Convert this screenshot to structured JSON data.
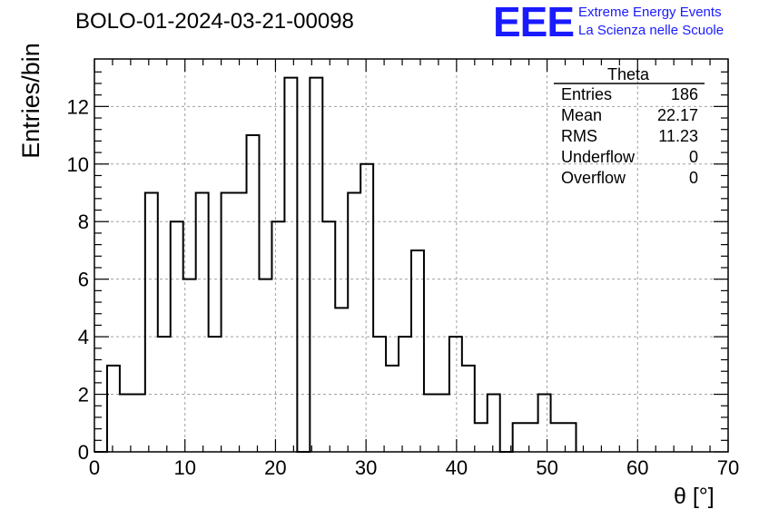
{
  "header": {
    "title": "BOLO-01-2024-03-21-00098",
    "logo": {
      "text": "EEE",
      "line1": "Extreme Energy Events",
      "line2": "La Scienza nelle Scuole"
    }
  },
  "stats": {
    "title": "Theta",
    "rows": [
      {
        "label": "Entries",
        "value": "186"
      },
      {
        "label": "Mean",
        "value": "22.17"
      },
      {
        "label": "RMS",
        "value": "11.23"
      },
      {
        "label": "Underflow",
        "value": "0"
      },
      {
        "label": "Overflow",
        "value": "0"
      }
    ]
  },
  "colors": {
    "line": "#000000",
    "grid": "#a0a0a0",
    "logo": "#1a1aff"
  },
  "chart_data": {
    "type": "bar",
    "histogram": true,
    "xlabel": "θ [°]",
    "ylabel": "Entries/bin",
    "xlim": [
      0,
      70
    ],
    "ylim": [
      0,
      13.65
    ],
    "xticks": [
      "0",
      "10",
      "20",
      "30",
      "40",
      "50",
      "60",
      "70"
    ],
    "yticks": [
      "0",
      "2",
      "4",
      "6",
      "8",
      "10",
      "12"
    ],
    "grid": true,
    "legend": "top-right",
    "bin_edges": [
      0.0,
      1.4,
      2.8,
      4.2,
      5.6,
      7.0,
      8.4,
      9.8,
      11.2,
      12.6,
      14.0,
      15.4,
      16.8,
      18.2,
      19.6,
      21.0,
      22.4,
      23.8,
      25.2,
      26.6,
      28.0,
      29.4,
      30.8,
      32.2,
      33.6,
      35.0,
      36.4,
      37.8,
      39.2,
      40.6,
      42.0,
      43.4,
      44.8,
      46.2,
      47.6,
      49.0,
      50.4,
      51.8,
      53.2
    ],
    "values": [
      0,
      3,
      2,
      2,
      9,
      4,
      8,
      6,
      9,
      4,
      9,
      9,
      11,
      6,
      8,
      13,
      0,
      13,
      8,
      5,
      9,
      10,
      4,
      3,
      4,
      7,
      2,
      2,
      4,
      3,
      1,
      2,
      0,
      1,
      1,
      2,
      1,
      1
    ]
  }
}
